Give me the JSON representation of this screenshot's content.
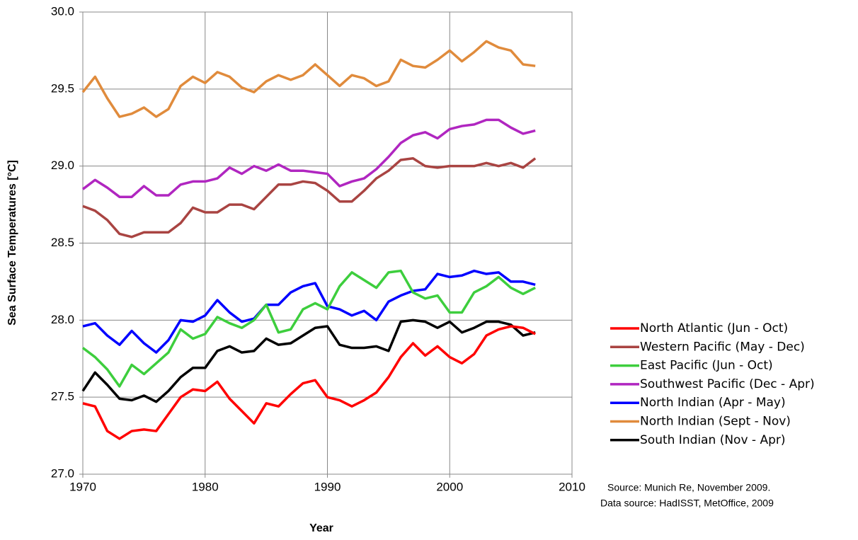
{
  "chart_data": {
    "type": "line",
    "xlabel": "Year",
    "ylabel": "Sea Surface Temperatures [°C]",
    "annotations": [
      "Source: Munich Re, November 2009.",
      "Data source: HadISST, MetOffice, 2009"
    ],
    "x": [
      1970,
      1971,
      1972,
      1973,
      1974,
      1975,
      1976,
      1977,
      1978,
      1979,
      1980,
      1981,
      1982,
      1983,
      1984,
      1985,
      1986,
      1987,
      1988,
      1989,
      1990,
      1991,
      1992,
      1993,
      1994,
      1995,
      1996,
      1997,
      1998,
      1999,
      2000,
      2001,
      2002,
      2003,
      2004,
      2005,
      2006,
      2007
    ],
    "xlim": [
      1970,
      2010
    ],
    "xticks": [
      1970,
      1980,
      1990,
      2000,
      2010
    ],
    "ylim": [
      27,
      30
    ],
    "yticks": [
      {
        "value": 27,
        "label": "27.0"
      },
      27.5,
      {
        "value": 28,
        "label": "28.0"
      },
      28.5,
      {
        "value": 29,
        "label": "29.0"
      },
      29.5,
      {
        "value": 30,
        "label": "30.0"
      }
    ],
    "grid": true,
    "legend": "right",
    "series": [
      {
        "name": "North Atlantic (Jun - Oct)",
        "color": "#ff0000",
        "values": [
          27.46,
          27.44,
          27.28,
          27.23,
          27.28,
          27.29,
          27.28,
          27.39,
          27.5,
          27.55,
          27.54,
          27.6,
          27.49,
          27.41,
          27.33,
          27.46,
          27.44,
          27.52,
          27.59,
          27.61,
          27.5,
          27.48,
          27.44,
          27.48,
          27.53,
          27.63,
          27.76,
          27.85,
          27.77,
          27.83,
          27.76,
          27.72,
          27.78,
          27.9,
          27.94,
          27.96,
          27.95,
          27.91
        ]
      },
      {
        "name": "Western Pacific (May - Dec)",
        "color": "#a94442",
        "values": [
          28.74,
          28.71,
          28.65,
          28.56,
          28.54,
          28.57,
          28.57,
          28.57,
          28.63,
          28.73,
          28.7,
          28.7,
          28.75,
          28.75,
          28.72,
          28.8,
          28.88,
          28.88,
          28.9,
          28.89,
          28.84,
          28.77,
          28.77,
          28.84,
          28.92,
          28.97,
          29.04,
          29.05,
          29.0,
          28.99,
          29.0,
          29.0,
          29.0,
          29.02,
          29.0,
          29.02,
          28.99,
          29.05
        ]
      },
      {
        "name": "East Pacific (Jun - Oct)",
        "color": "#3dce3d",
        "values": [
          27.82,
          27.76,
          27.68,
          27.57,
          27.71,
          27.65,
          27.72,
          27.79,
          27.94,
          27.88,
          27.91,
          28.02,
          27.98,
          27.95,
          28.0,
          28.1,
          27.92,
          27.94,
          28.07,
          28.11,
          28.07,
          28.22,
          28.31,
          28.26,
          28.21,
          28.31,
          28.32,
          28.18,
          28.14,
          28.16,
          28.05,
          28.05,
          28.18,
          28.22,
          28.28,
          28.21,
          28.17,
          28.21
        ]
      },
      {
        "name": "Southwest Pacific (Dec - Apr)",
        "color": "#b026c0",
        "values": [
          28.85,
          28.91,
          28.86,
          28.8,
          28.8,
          28.87,
          28.81,
          28.81,
          28.88,
          28.9,
          28.9,
          28.92,
          28.99,
          28.95,
          29.0,
          28.97,
          29.01,
          28.97,
          28.97,
          28.96,
          28.95,
          28.87,
          28.9,
          28.92,
          28.98,
          29.06,
          29.15,
          29.2,
          29.22,
          29.18,
          29.24,
          29.26,
          29.27,
          29.3,
          29.3,
          29.25,
          29.21,
          29.23
        ]
      },
      {
        "name": "North Indian (Apr - May)",
        "color": "#0000ff",
        "values": [
          27.96,
          27.98,
          27.9,
          27.84,
          27.93,
          27.85,
          27.79,
          27.87,
          28.0,
          27.99,
          28.03,
          28.13,
          28.05,
          27.99,
          28.01,
          28.1,
          28.1,
          28.18,
          28.22,
          28.24,
          28.09,
          28.07,
          28.03,
          28.06,
          28.0,
          28.12,
          28.16,
          28.19,
          28.2,
          28.3,
          28.28,
          28.29,
          28.32,
          28.3,
          28.31,
          28.25,
          28.25,
          28.23
        ]
      },
      {
        "name": "North Indian (Sept - Nov)",
        "color": "#e08b3c",
        "values": [
          29.48,
          29.58,
          29.44,
          29.32,
          29.34,
          29.38,
          29.32,
          29.37,
          29.52,
          29.58,
          29.54,
          29.61,
          29.58,
          29.51,
          29.48,
          29.55,
          29.59,
          29.56,
          29.59,
          29.66,
          29.59,
          29.52,
          29.59,
          29.57,
          29.52,
          29.55,
          29.69,
          29.65,
          29.64,
          29.69,
          29.75,
          29.68,
          29.74,
          29.81,
          29.77,
          29.75,
          29.66,
          29.65
        ]
      },
      {
        "name": "South Indian (Nov - Apr)",
        "color": "#000000",
        "values": [
          27.54,
          27.66,
          27.58,
          27.49,
          27.48,
          27.51,
          27.47,
          27.54,
          27.63,
          27.69,
          27.69,
          27.8,
          27.83,
          27.79,
          27.8,
          27.88,
          27.84,
          27.85,
          27.9,
          27.95,
          27.96,
          27.84,
          27.82,
          27.82,
          27.83,
          27.8,
          27.99,
          28.0,
          27.99,
          27.95,
          27.99,
          27.92,
          27.95,
          27.99,
          27.99,
          27.97,
          27.9,
          27.92
        ]
      }
    ]
  }
}
